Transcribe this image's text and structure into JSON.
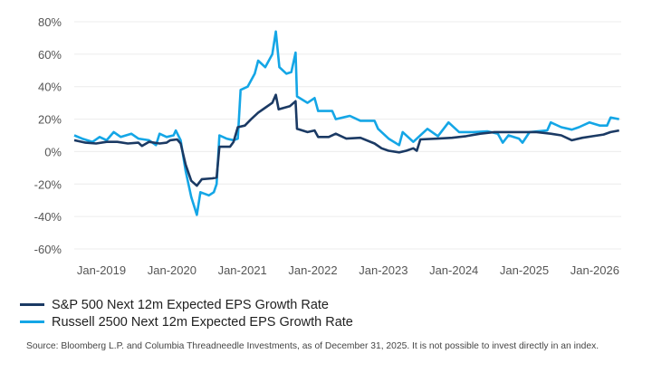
{
  "chart_data": {
    "type": "line",
    "title": "",
    "xlabel": "",
    "ylabel": "",
    "ylim": [
      -60,
      80
    ],
    "yticks": [
      80,
      60,
      40,
      20,
      0,
      -20,
      -40,
      -60
    ],
    "ytick_labels": [
      "80%",
      "60%",
      "40%",
      "20%",
      "0%",
      "-20%",
      "-40%",
      "-60%"
    ],
    "xlim": [
      2018.64,
      2026.4
    ],
    "xticks": [
      2019,
      2020,
      2021,
      2022,
      2023,
      2024,
      2025,
      2026
    ],
    "xtick_labels": [
      "Jan-2019",
      "Jan-2020",
      "Jan-2021",
      "Jan-2022",
      "Jan-2023",
      "Jan-2024",
      "Jan-2025",
      "Jan-2026"
    ],
    "grid": true,
    "legend_position": "bottom-left",
    "series": [
      {
        "name": "S&P 500 Next 12m Expected EPS Growth Rate",
        "color": "#1b3a64",
        "points": [
          [
            2018.64,
            7
          ],
          [
            2018.8,
            5.5
          ],
          [
            2018.95,
            5
          ],
          [
            2019.1,
            6
          ],
          [
            2019.25,
            6
          ],
          [
            2019.4,
            5
          ],
          [
            2019.55,
            5.5
          ],
          [
            2019.6,
            3.5
          ],
          [
            2019.7,
            6
          ],
          [
            2019.85,
            5
          ],
          [
            2019.95,
            5.5
          ],
          [
            2020.0,
            7
          ],
          [
            2020.1,
            7.5
          ],
          [
            2020.15,
            5
          ],
          [
            2020.22,
            -8
          ],
          [
            2020.3,
            -18
          ],
          [
            2020.38,
            -21
          ],
          [
            2020.45,
            -17
          ],
          [
            2020.6,
            -16.5
          ],
          [
            2020.66,
            -16
          ],
          [
            2020.7,
            3
          ],
          [
            2020.85,
            3
          ],
          [
            2020.9,
            6
          ],
          [
            2020.96,
            15
          ],
          [
            2021.06,
            16
          ],
          [
            2021.15,
            20
          ],
          [
            2021.25,
            24
          ],
          [
            2021.35,
            27
          ],
          [
            2021.45,
            30
          ],
          [
            2021.5,
            35
          ],
          [
            2021.54,
            26
          ],
          [
            2021.7,
            28
          ],
          [
            2021.78,
            31
          ],
          [
            2021.8,
            14
          ],
          [
            2021.95,
            12
          ],
          [
            2022.05,
            13
          ],
          [
            2022.1,
            9
          ],
          [
            2022.25,
            9
          ],
          [
            2022.35,
            11
          ],
          [
            2022.5,
            8
          ],
          [
            2022.7,
            8.5
          ],
          [
            2022.9,
            5
          ],
          [
            2023.0,
            2
          ],
          [
            2023.1,
            0.5
          ],
          [
            2023.25,
            -0.5
          ],
          [
            2023.35,
            0.5
          ],
          [
            2023.45,
            2
          ],
          [
            2023.5,
            0.5
          ],
          [
            2023.55,
            7.5
          ],
          [
            2023.8,
            8
          ],
          [
            2024.0,
            8.5
          ],
          [
            2024.2,
            9.5
          ],
          [
            2024.4,
            11
          ],
          [
            2024.6,
            12
          ],
          [
            2024.8,
            12
          ],
          [
            2025.0,
            12
          ],
          [
            2025.2,
            12
          ],
          [
            2025.4,
            11
          ],
          [
            2025.55,
            10
          ],
          [
            2025.7,
            7
          ],
          [
            2025.85,
            8.5
          ],
          [
            2026.0,
            9.5
          ],
          [
            2026.15,
            10.5
          ],
          [
            2026.25,
            12
          ],
          [
            2026.37,
            13
          ]
        ]
      },
      {
        "name": "Russell 2500 Next 12m Expected EPS Growth Rate",
        "color": "#14a6e6",
        "points": [
          [
            2018.64,
            10
          ],
          [
            2018.75,
            8
          ],
          [
            2018.9,
            6
          ],
          [
            2019.0,
            9
          ],
          [
            2019.1,
            7
          ],
          [
            2019.2,
            12
          ],
          [
            2019.3,
            9
          ],
          [
            2019.45,
            11
          ],
          [
            2019.55,
            8
          ],
          [
            2019.7,
            7
          ],
          [
            2019.8,
            4
          ],
          [
            2019.85,
            11
          ],
          [
            2019.95,
            9
          ],
          [
            2020.05,
            10
          ],
          [
            2020.08,
            13
          ],
          [
            2020.15,
            7
          ],
          [
            2020.22,
            -12
          ],
          [
            2020.3,
            -28
          ],
          [
            2020.38,
            -39
          ],
          [
            2020.43,
            -25
          ],
          [
            2020.55,
            -27
          ],
          [
            2020.62,
            -25
          ],
          [
            2020.66,
            -20
          ],
          [
            2020.7,
            10
          ],
          [
            2020.8,
            8
          ],
          [
            2020.9,
            7
          ],
          [
            2020.96,
            8
          ],
          [
            2021.0,
            38
          ],
          [
            2021.1,
            40
          ],
          [
            2021.2,
            48
          ],
          [
            2021.25,
            56
          ],
          [
            2021.35,
            52
          ],
          [
            2021.45,
            60
          ],
          [
            2021.5,
            74
          ],
          [
            2021.55,
            52
          ],
          [
            2021.65,
            48
          ],
          [
            2021.72,
            49
          ],
          [
            2021.78,
            61
          ],
          [
            2021.8,
            34
          ],
          [
            2021.95,
            30
          ],
          [
            2022.05,
            33
          ],
          [
            2022.1,
            25
          ],
          [
            2022.3,
            25
          ],
          [
            2022.35,
            20
          ],
          [
            2022.55,
            22
          ],
          [
            2022.7,
            19
          ],
          [
            2022.9,
            19
          ],
          [
            2022.95,
            14
          ],
          [
            2023.1,
            8
          ],
          [
            2023.25,
            4
          ],
          [
            2023.3,
            12
          ],
          [
            2023.45,
            6
          ],
          [
            2023.65,
            14
          ],
          [
            2023.8,
            9.5
          ],
          [
            2023.95,
            18
          ],
          [
            2024.1,
            12
          ],
          [
            2024.3,
            12
          ],
          [
            2024.5,
            12.5
          ],
          [
            2024.65,
            11
          ],
          [
            2024.72,
            5.5
          ],
          [
            2024.8,
            10
          ],
          [
            2024.95,
            8
          ],
          [
            2025.0,
            5.5
          ],
          [
            2025.1,
            12
          ],
          [
            2025.35,
            13
          ],
          [
            2025.4,
            18
          ],
          [
            2025.55,
            15
          ],
          [
            2025.7,
            13.5
          ],
          [
            2025.8,
            15
          ],
          [
            2025.95,
            18
          ],
          [
            2026.1,
            16
          ],
          [
            2026.2,
            16
          ],
          [
            2026.25,
            21
          ],
          [
            2026.37,
            20
          ]
        ]
      }
    ]
  },
  "legend": {
    "items": [
      {
        "label": "S&P 500 Next 12m Expected EPS Growth Rate",
        "color": "#1b3a64"
      },
      {
        "label": "Russell 2500 Next 12m Expected EPS Growth Rate",
        "color": "#14a6e6"
      }
    ]
  },
  "source": "Source: Bloomberg L.P. and Columbia Threadneedle Investments, as of December 31, 2025. It is not possible to invest directly in an index."
}
